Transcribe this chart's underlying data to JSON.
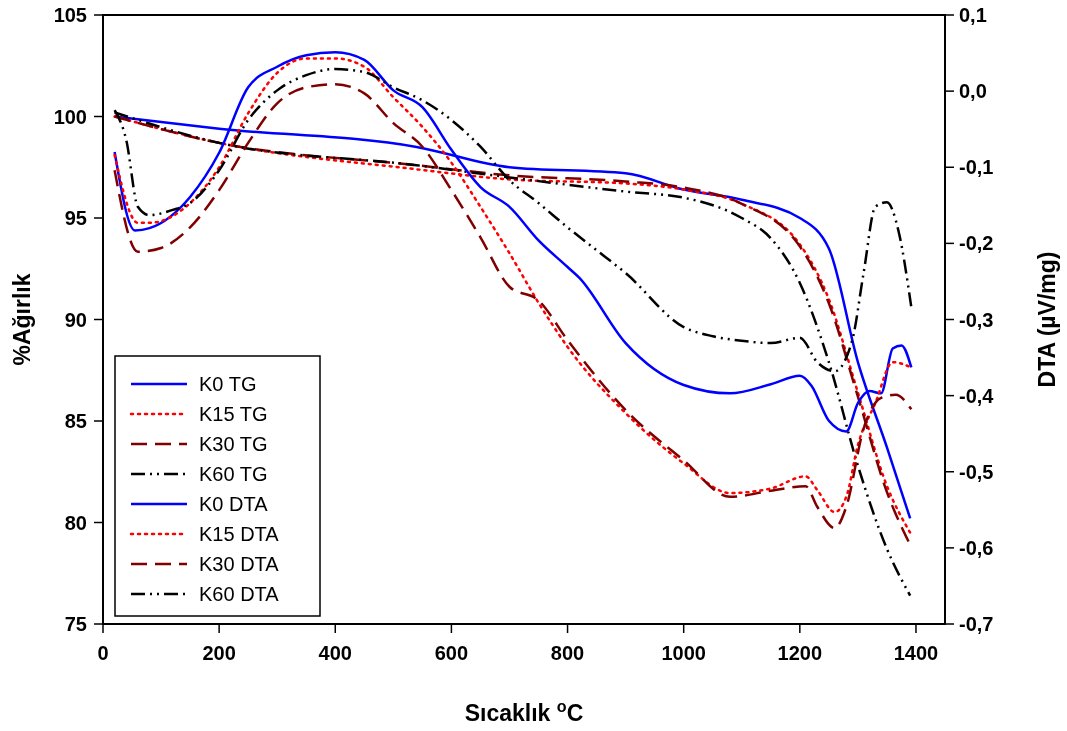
{
  "chart_data": {
    "type": "line",
    "xlabel": "Sıcaklık $^{o}$C",
    "ylabel": "%Ağırlık",
    "y2label": "DTA (µV/mg)",
    "xlim": [
      0,
      1450
    ],
    "xticks": [
      0,
      200,
      400,
      600,
      800,
      1000,
      1200,
      1400
    ],
    "ylim": [
      75,
      105
    ],
    "yticks": [
      75,
      80,
      85,
      90,
      95,
      100,
      105
    ],
    "y2lim": [
      -0.7,
      0.1
    ],
    "y2ticks": [
      {
        "value": -0.7,
        "label": "-0,7"
      },
      {
        "value": -0.6,
        "label": "-0,6"
      },
      {
        "value": -0.5,
        "label": "-0,5"
      },
      {
        "value": -0.4,
        "label": "-0,4"
      },
      {
        "value": -0.3,
        "label": "-0,3"
      },
      {
        "value": -0.2,
        "label": "-0,2"
      },
      {
        "value": -0.1,
        "label": "-0,1"
      },
      {
        "value": 0,
        "label": "0,0"
      },
      {
        "value": 0.1,
        "label": "0,1"
      }
    ],
    "grid": false,
    "legend": "bottom left",
    "marker": "none",
    "series": [
      {
        "name": "K0 TG",
        "color": "#0000ff",
        "line_style": "solid",
        "x": [
          20,
          200,
          540,
          700,
          900,
          1000,
          1100,
          1200,
          1250,
          1300,
          1350,
          1390
        ],
        "values": [
          100,
          99.4,
          98.5,
          97.5,
          97.2,
          96.4,
          95.9,
          95.0,
          93.5,
          87.9,
          83.7,
          80.2
        ]
      },
      {
        "name": "K15 TG",
        "color": "#ff0000",
        "line_style": "dotted",
        "x": [
          20,
          200,
          540,
          700,
          900,
          1000,
          1100,
          1200,
          1250,
          1300,
          1350,
          1390
        ],
        "values": [
          100,
          98.7,
          97.4,
          96.9,
          96.7,
          96.4,
          95.7,
          93.7,
          91.0,
          86.4,
          81.8,
          79.5
        ]
      },
      {
        "name": "K30 TG",
        "color": "#800000",
        "line_style": "dashed",
        "x": [
          20,
          200,
          540,
          700,
          900,
          1000,
          1100,
          1200,
          1250,
          1300,
          1350,
          1390
        ],
        "values": [
          100,
          98.7,
          97.6,
          97.1,
          96.8,
          96.5,
          95.7,
          93.6,
          90.8,
          86.2,
          81.5,
          78.9
        ]
      },
      {
        "name": "K60 TG",
        "color": "#000000",
        "line_style": "dashdotdot",
        "x": [
          20,
          200,
          540,
          700,
          900,
          1000,
          1100,
          1150,
          1200,
          1250,
          1300,
          1350,
          1390
        ],
        "values": [
          100.2,
          98.7,
          97.6,
          97.0,
          96.3,
          96.0,
          95.0,
          94.0,
          91.8,
          87.9,
          82.8,
          78.7,
          76.4
        ]
      },
      {
        "name": "K0 DTA",
        "color": "#0000ff",
        "line_style": "solid",
        "axis": "y2",
        "x": [
          20,
          55,
          80,
          150,
          200,
          250,
          300,
          350,
          400,
          450,
          500,
          550,
          600,
          650,
          700,
          750,
          800,
          820,
          900,
          1000,
          1080,
          1150,
          1200,
          1220,
          1250,
          1280,
          1300,
          1320,
          1340,
          1360,
          1375,
          1392
        ],
        "values": [
          -0.08,
          -0.183,
          -0.18,
          -0.139,
          -0.081,
          0.005,
          0.032,
          0.047,
          0.051,
          0.041,
          0.001,
          -0.021,
          -0.077,
          -0.126,
          -0.152,
          -0.196,
          -0.231,
          -0.245,
          -0.331,
          -0.386,
          -0.397,
          -0.385,
          -0.374,
          -0.387,
          -0.433,
          -0.447,
          -0.41,
          -0.394,
          -0.397,
          -0.338,
          -0.334,
          -0.363
        ]
      },
      {
        "name": "K15 DTA",
        "color": "#ff0000",
        "line_style": "dotted",
        "axis": "y2",
        "x": [
          20,
          60,
          80,
          150,
          200,
          250,
          300,
          350,
          400,
          450,
          500,
          550,
          600,
          650,
          700,
          750,
          800,
          900,
          1000,
          1080,
          1150,
          1210,
          1230,
          1260,
          1280,
          1300,
          1330,
          1360,
          1392
        ],
        "values": [
          -0.084,
          -0.173,
          -0.173,
          -0.147,
          -0.1,
          -0.029,
          0.024,
          0.043,
          0.043,
          0.032,
          -0.008,
          -0.047,
          -0.094,
          -0.152,
          -0.213,
          -0.278,
          -0.336,
          -0.423,
          -0.489,
          -0.528,
          -0.522,
          -0.506,
          -0.524,
          -0.553,
          -0.533,
          -0.465,
          -0.41,
          -0.356,
          -0.363
        ]
      },
      {
        "name": "K30 DTA",
        "color": "#800000",
        "line_style": "dashed",
        "axis": "y2",
        "x": [
          20,
          60,
          100,
          150,
          200,
          250,
          300,
          350,
          400,
          450,
          500,
          550,
          600,
          650,
          700,
          750,
          800,
          900,
          1000,
          1080,
          1150,
          1210,
          1230,
          1260,
          1280,
          1310,
          1340,
          1365,
          1392
        ],
        "values": [
          -0.104,
          -0.211,
          -0.206,
          -0.179,
          -0.13,
          -0.068,
          -0.016,
          0.005,
          0.009,
          -0.003,
          -0.042,
          -0.073,
          -0.13,
          -0.192,
          -0.257,
          -0.275,
          -0.327,
          -0.419,
          -0.485,
          -0.533,
          -0.525,
          -0.519,
          -0.546,
          -0.574,
          -0.546,
          -0.443,
          -0.403,
          -0.399,
          -0.418
        ]
      },
      {
        "name": "K60 DTA",
        "color": "#000000",
        "line_style": "dashdotdot",
        "axis": "y2",
        "x": [
          20,
          40,
          60,
          80,
          120,
          150,
          200,
          250,
          300,
          350,
          400,
          450,
          500,
          550,
          600,
          650,
          700,
          750,
          800,
          850,
          900,
          1000,
          1050,
          1100,
          1150,
          1200,
          1230,
          1260,
          1290,
          1310,
          1330,
          1350,
          1370,
          1392
        ],
        "values": [
          -0.025,
          -0.064,
          -0.152,
          -0.163,
          -0.156,
          -0.147,
          -0.104,
          -0.038,
          0.001,
          0.021,
          0.029,
          0.025,
          0.005,
          -0.012,
          -0.038,
          -0.073,
          -0.117,
          -0.147,
          -0.179,
          -0.209,
          -0.239,
          -0.31,
          -0.322,
          -0.328,
          -0.331,
          -0.324,
          -0.356,
          -0.368,
          -0.328,
          -0.238,
          -0.152,
          -0.146,
          -0.184,
          -0.284
        ]
      }
    ]
  }
}
